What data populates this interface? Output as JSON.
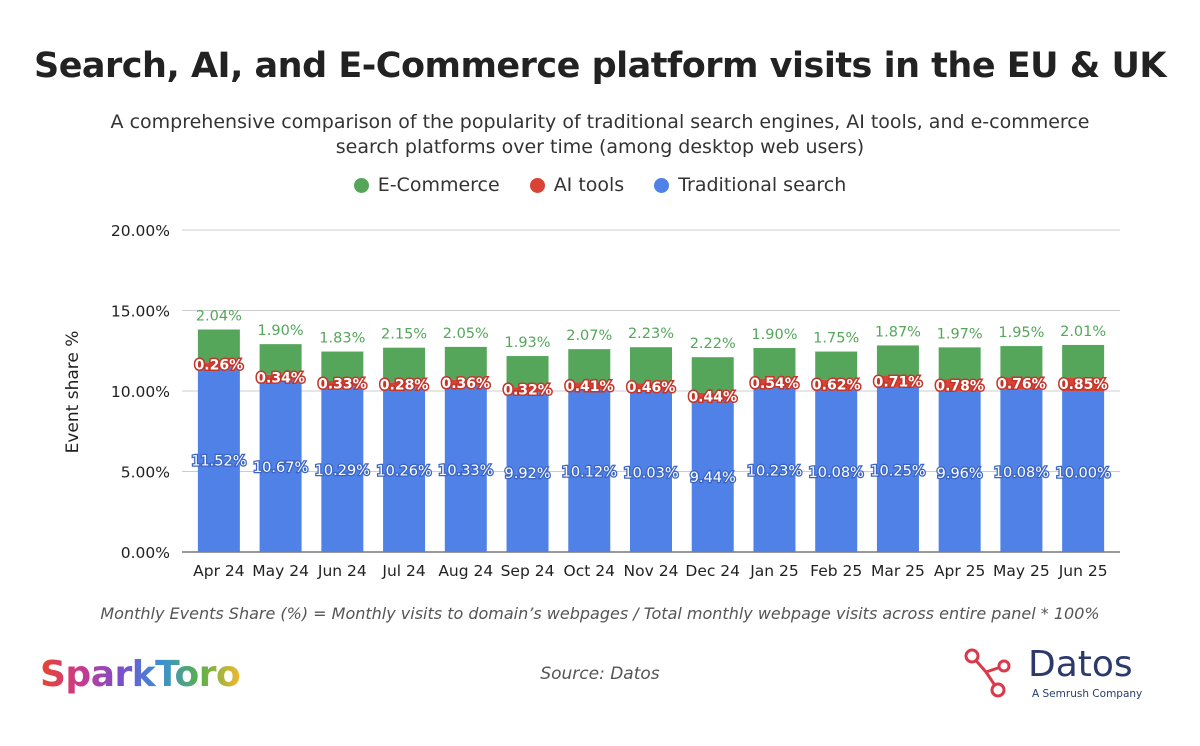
{
  "header": {
    "title": "Search, AI, and E-Commerce platform visits in the EU & UK",
    "subtitle": "A comprehensive comparison of the popularity of traditional search engines, AI tools, and e-commerce search platforms over time (among desktop web users)"
  },
  "chart_data": {
    "type": "bar",
    "stacked": true,
    "categories": [
      "Apr 24",
      "May 24",
      "Jun 24",
      "Jul 24",
      "Aug 24",
      "Sep 24",
      "Oct 24",
      "Nov 24",
      "Dec 24",
      "Jan 25",
      "Feb 25",
      "Mar 25",
      "Apr 25",
      "May 25",
      "Jun 25"
    ],
    "series": [
      {
        "name": "Traditional search",
        "color": "#4f81e6",
        "values": [
          11.52,
          10.67,
          10.29,
          10.26,
          10.33,
          9.92,
          10.12,
          10.03,
          9.44,
          10.23,
          10.08,
          10.25,
          9.96,
          10.08,
          10.0
        ],
        "labels": [
          "11.52%",
          "10.67%",
          "10.29%",
          "10.26%",
          "10.33%",
          "9.92%",
          "10.12%",
          "10.03%",
          "9.44%",
          "10.23%",
          "10.08%",
          "10.25%",
          "9.96%",
          "10.08%",
          "10.00%"
        ]
      },
      {
        "name": "AI tools",
        "color": "#d94236",
        "values": [
          0.26,
          0.34,
          0.33,
          0.28,
          0.36,
          0.32,
          0.41,
          0.46,
          0.44,
          0.54,
          0.62,
          0.71,
          0.78,
          0.76,
          0.85
        ],
        "labels": [
          "0.26%",
          "0.34%",
          "0.33%",
          "0.28%",
          "0.36%",
          "0.32%",
          "0.41%",
          "0.46%",
          "0.44%",
          "0.54%",
          "0.62%",
          "0.71%",
          "0.78%",
          "0.76%",
          "0.85%"
        ]
      },
      {
        "name": "E-Commerce",
        "color": "#55a65a",
        "values": [
          2.04,
          1.9,
          1.83,
          2.15,
          2.05,
          1.93,
          2.07,
          2.23,
          2.22,
          1.9,
          1.75,
          1.87,
          1.97,
          1.95,
          2.01
        ],
        "labels": [
          "2.04%",
          "1.90%",
          "1.83%",
          "2.15%",
          "2.05%",
          "1.93%",
          "2.07%",
          "2.23%",
          "2.22%",
          "1.90%",
          "1.75%",
          "1.87%",
          "1.97%",
          "1.95%",
          "2.01%"
        ]
      }
    ],
    "legend": [
      "E-Commerce",
      "AI tools",
      "Traditional search"
    ],
    "legend_position": "top",
    "ylabel": "Event share %",
    "xlabel": "",
    "ylim": [
      0,
      20
    ],
    "yticks": [
      0,
      5,
      10,
      15,
      20
    ],
    "ytick_labels": [
      "0.00%",
      "5.00%",
      "10.00%",
      "15.00%",
      "20.00%"
    ],
    "grid": true
  },
  "footer": {
    "note": "Monthly Events Share (%) = Monthly visits to domain’s webpages / Total monthly webpage visits across entire panel * 100%",
    "source": "Source: Datos"
  },
  "logos": {
    "sparktoro": "SparkToro",
    "datos_name": "Datos",
    "datos_tagline": "A Semrush Company"
  }
}
